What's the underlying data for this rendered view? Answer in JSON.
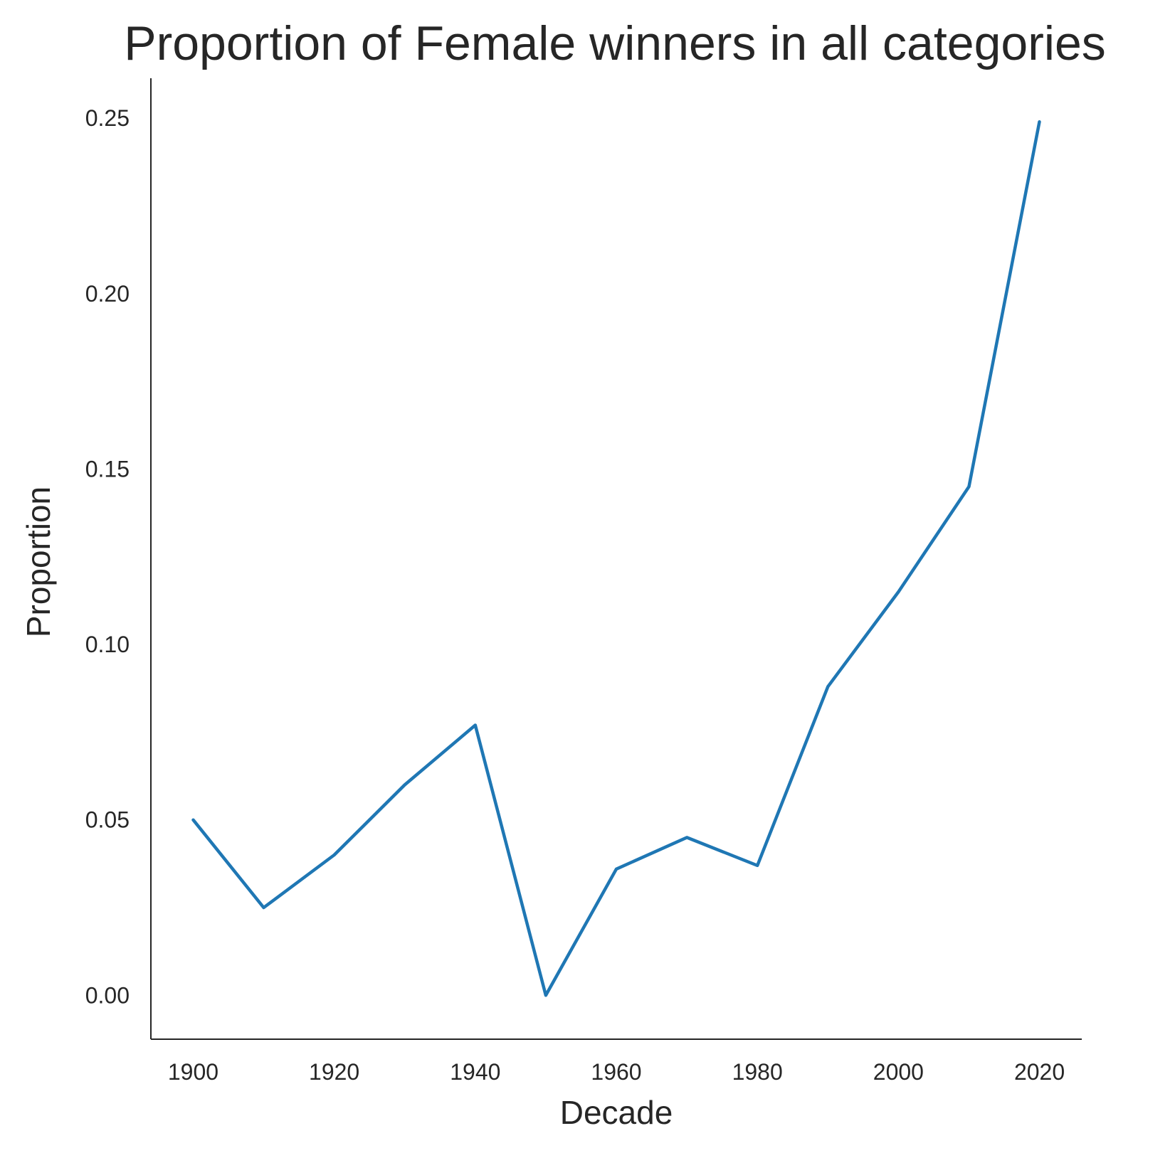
{
  "chart_data": {
    "type": "line",
    "title": "Proportion of Female winners in all categories",
    "xlabel": "Decade",
    "ylabel": "Proportion",
    "x": [
      1900,
      1910,
      1920,
      1930,
      1940,
      1950,
      1960,
      1970,
      1980,
      1990,
      2000,
      2010,
      2020
    ],
    "series": [
      {
        "values": [
          0.05,
          0.025,
          0.04,
          0.06,
          0.077,
          0.0,
          0.036,
          0.045,
          0.037,
          0.088,
          0.115,
          0.145,
          0.249
        ],
        "color": "#1f77b4"
      }
    ],
    "xticks": [
      1900,
      1920,
      1940,
      1960,
      1980,
      2000,
      2020
    ],
    "xtick_labels": [
      "1900",
      "1920",
      "1940",
      "1960",
      "1980",
      "2000",
      "2020"
    ],
    "yticks": [
      0.0,
      0.05,
      0.1,
      0.15,
      0.2,
      0.25
    ],
    "ytick_labels": [
      "0.00",
      "0.05",
      "0.10",
      "0.15",
      "0.20",
      "0.25"
    ],
    "xlim": [
      1894,
      2026
    ],
    "ylim": [
      -0.0125,
      0.2614
    ],
    "grid": false,
    "legend": "none"
  }
}
